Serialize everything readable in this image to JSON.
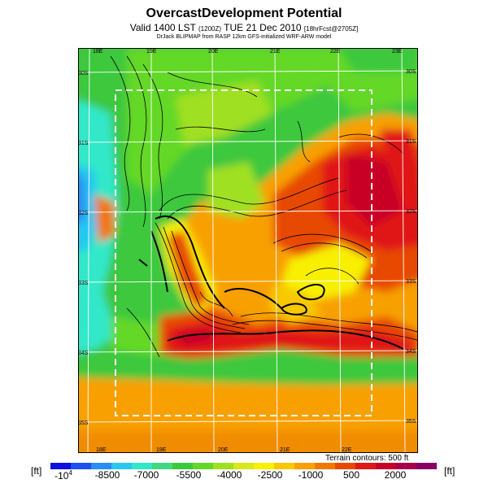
{
  "header": {
    "title": "OvercastDevelopment Potential",
    "valid_time": "Valid 1400 LST",
    "valid_time_utc": "(1200Z)",
    "valid_date": "TUE 21 Dec 2010",
    "forecast_label": "[18hrFcst@2705Z]",
    "credit": "DrJack BLIPMAP from RASP 12km GFS-initialized WRF-ARW model"
  },
  "map": {
    "lon_ticks": [
      "18E",
      "19E",
      "20E",
      "21E",
      "22E",
      "23E"
    ],
    "lon_ticks_bottom": [
      "18E",
      "19E",
      "20E",
      "21E",
      "22E"
    ],
    "lat_ticks_left": [
      "30S",
      "31S",
      "32S",
      "33S",
      "34S",
      "35S"
    ],
    "lat_ticks_right": [
      "30S",
      "31S",
      "32S",
      "33S",
      "34S",
      "35S"
    ],
    "terrain_note": "Terrain contours: 500 ft"
  },
  "colorbar": {
    "unit_left": "[ft]",
    "unit_right": "[ft]",
    "colors": [
      "#1010e0",
      "#1e50f0",
      "#2a8cf5",
      "#28c8f0",
      "#30e8c8",
      "#40d880",
      "#3cc83c",
      "#64d828",
      "#a0e020",
      "#d8e818",
      "#f8f000",
      "#f8c800",
      "#f8a000",
      "#f07800",
      "#e84800",
      "#e01818",
      "#c80028",
      "#a8004c",
      "#880064"
    ],
    "labels": [
      "-10^4",
      "-8500",
      "-7000",
      "-5500",
      "-4000",
      "-2500",
      "-1000",
      "500",
      "2000"
    ]
  }
}
